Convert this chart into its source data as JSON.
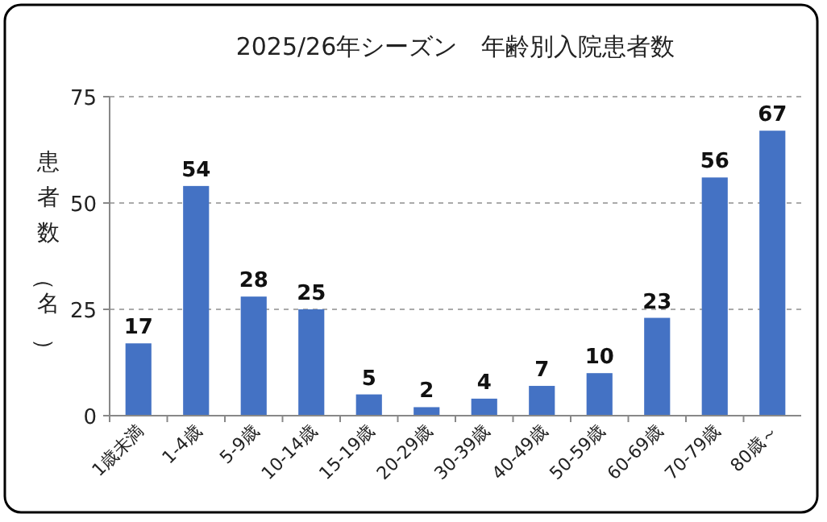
{
  "chart_data": {
    "type": "bar",
    "title": "2025/26年シーズン　年齢別入院患者数",
    "ylabel": "患者数（名）",
    "categories": [
      "1歳未満",
      "1-4歳",
      "5-9歳",
      "10-14歳",
      "15-19歳",
      "20-29歳",
      "30-39歳",
      "40-49歳",
      "50-59歳",
      "60-69歳",
      "70-79歳",
      "80歳～"
    ],
    "values": [
      17,
      54,
      28,
      25,
      5,
      2,
      4,
      7,
      10,
      23,
      56,
      67
    ],
    "color": "#4472c4",
    "ylim": [
      0,
      75
    ],
    "yticks": [
      0,
      25,
      50,
      75
    ],
    "grid": "y",
    "data_labels": true
  }
}
